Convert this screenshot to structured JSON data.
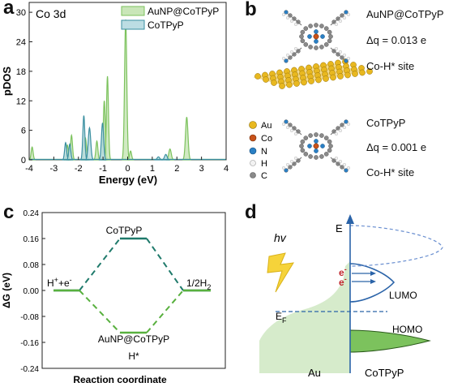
{
  "panel_labels": {
    "a": "a",
    "b": "b",
    "c": "c",
    "d": "d"
  },
  "chart_data": [
    {
      "type": "area",
      "title": "Co 3d",
      "xlabel": "Energy (eV)",
      "ylabel": "pDOS",
      "xlim": [
        -4,
        4
      ],
      "ylim": [
        0,
        32
      ],
      "xticks": [
        "-4",
        "-3",
        "-2",
        "-1",
        "0",
        "1",
        "2",
        "3",
        "4"
      ],
      "yticks": [
        "0",
        "6",
        "12",
        "18",
        "24",
        "30"
      ],
      "legend_position": "top-right",
      "series": [
        {
          "name": "AuNP@CoTPyP",
          "color": "#7cc25d",
          "fill": "#c9e6b8",
          "peaks": [
            {
              "x": -3.88,
              "y": 2.6,
              "w": 0.04
            },
            {
              "x": -2.45,
              "y": 3.0,
              "w": 0.04
            },
            {
              "x": -2.28,
              "y": 5.0,
              "w": 0.04
            },
            {
              "x": -1.72,
              "y": 4.5,
              "w": 0.05
            },
            {
              "x": -1.25,
              "y": 3.8,
              "w": 0.04
            },
            {
              "x": -0.95,
              "y": 12.0,
              "w": 0.04
            },
            {
              "x": -0.82,
              "y": 17.0,
              "w": 0.04
            },
            {
              "x": -0.08,
              "y": 28.5,
              "w": 0.045
            },
            {
              "x": 0.12,
              "y": 1.8,
              "w": 0.04
            },
            {
              "x": 1.72,
              "y": 2.2,
              "w": 0.05
            },
            {
              "x": 2.4,
              "y": 8.7,
              "w": 0.05
            }
          ]
        },
        {
          "name": "CoTPyP",
          "color": "#3a8fa0",
          "fill": "#bcdde3",
          "peaks": [
            {
              "x": -2.52,
              "y": 3.5,
              "w": 0.04
            },
            {
              "x": -2.35,
              "y": 3.2,
              "w": 0.04
            },
            {
              "x": -1.78,
              "y": 9.0,
              "w": 0.04
            },
            {
              "x": -1.55,
              "y": 6.5,
              "w": 0.05
            },
            {
              "x": -1.02,
              "y": 7.5,
              "w": 0.045
            },
            {
              "x": 1.25,
              "y": 0.6,
              "w": 0.05
            },
            {
              "x": 1.55,
              "y": 1.1,
              "w": 0.05
            }
          ]
        }
      ]
    },
    {
      "type": "line",
      "xlabel": "Reaction coordinate",
      "ylabel": "ΔG (eV)",
      "ylim": [
        -0.24,
        0.24
      ],
      "yticks": [
        "0.24",
        "0.16",
        "0.08",
        "0.00",
        "-0.08",
        "-0.16",
        "-0.24"
      ],
      "states": [
        "H⁺+e⁻",
        "H*",
        "1/2H₂"
      ],
      "series": [
        {
          "name": "CoTPyP",
          "color": "#1f7a6b",
          "values": [
            0.0,
            0.16,
            0.0
          ]
        },
        {
          "name": "AuNP@CoTPyP",
          "color": "#58b03e",
          "values": [
            0.0,
            -0.13,
            0.0
          ]
        }
      ],
      "labels": {
        "left": "H",
        "left_sup": "+",
        "left_tail": "+e",
        "left_sup2": "-",
        "right": "1/2H",
        "right_sub": "2",
        "middle": "H*",
        "top": "CoTPyP",
        "bottom": "AuNP@CoTPyP"
      }
    }
  ],
  "panel_b": {
    "top": {
      "name": "AuNP@CoTPyP",
      "dq": "Δq = 0.013 e",
      "site": "Co-H* site"
    },
    "bottom": {
      "name": "CoTPyP",
      "dq": "Δq = 0.001 e",
      "site": "Co-H* site"
    },
    "legend": [
      {
        "label": "Au",
        "color": "#e8b820"
      },
      {
        "label": "Co",
        "color": "#c8521a"
      },
      {
        "label": "N",
        "color": "#2a7fc4"
      },
      {
        "label": "H",
        "color": "#f2f2f2"
      },
      {
        "label": "C",
        "color": "#8a8a8a"
      }
    ]
  },
  "panel_d": {
    "hv": "hv",
    "E": "E",
    "EF": "E",
    "EF_sub": "F",
    "electron": "e",
    "electron_sup": "-",
    "lumo": "LUMO",
    "homo": "HOMO",
    "au": "Au",
    "cotpyp": "CoTPyP"
  }
}
